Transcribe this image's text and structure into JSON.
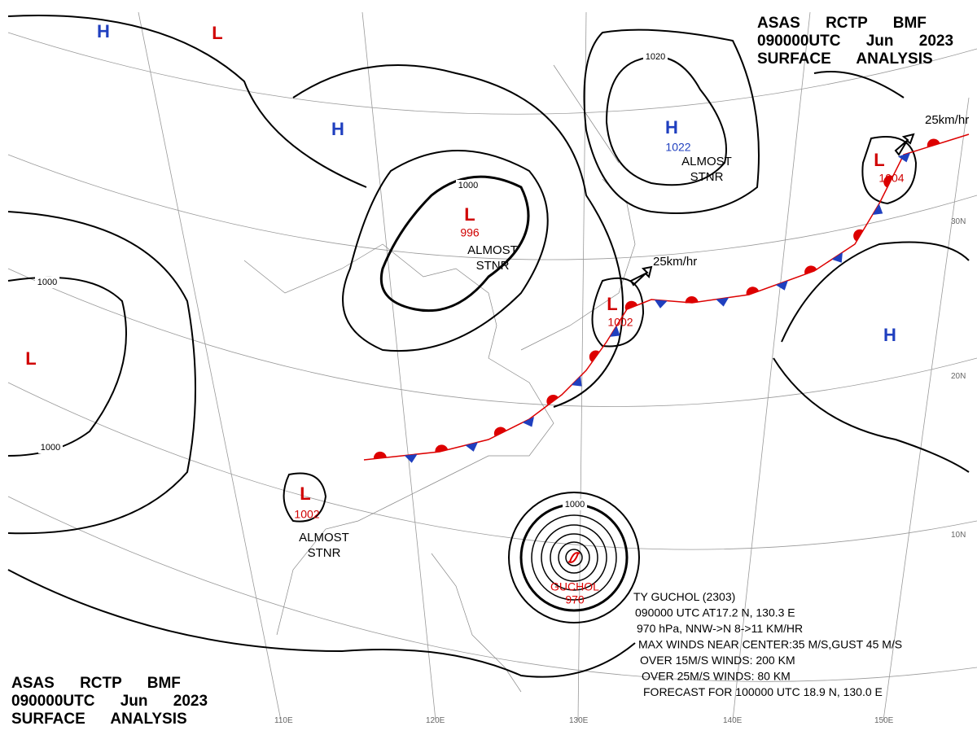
{
  "header_top": [
    "ASAS RCTP BMF",
    "090000UTC Jun 2023",
    "SURFACE ANALYSIS"
  ],
  "header_bottom": [
    "ASAS RCTP BMF",
    "090000UTC Jun 2023",
    "SURFACE ANALYSIS"
  ],
  "systems": [
    {
      "symbol": "H",
      "color": "#1f3fbf"
    },
    {
      "symbol": "L",
      "color": "#d00000"
    },
    {
      "symbol": "H",
      "color": "#1f3fbf"
    },
    {
      "symbol": "L",
      "color": "#d00000",
      "pressure": 996,
      "note": [
        "ALMOST",
        "STNR"
      ]
    },
    {
      "symbol": "H",
      "color": "#1f3fbf",
      "pressure": 1022,
      "note": [
        "ALMOST",
        "STNR"
      ]
    },
    {
      "symbol": "L",
      "color": "#d00000",
      "pressure": 1004
    },
    {
      "symbol": "L",
      "color": "#d00000",
      "pressure": 1002
    },
    {
      "symbol": "H",
      "color": "#1f3fbf"
    },
    {
      "symbol": "L",
      "color": "#d00000"
    },
    {
      "symbol": "L",
      "color": "#d00000",
      "pressure": 1002,
      "note": [
        "ALMOST",
        "STNR"
      ]
    }
  ],
  "isobar_labels": [
    1020,
    1000,
    1000,
    1000,
    1000
  ],
  "motion_labels": [
    "25km/hr",
    "25km/hr"
  ],
  "typhoon": {
    "name": "GUCHOL",
    "pressure": 970,
    "info": [
      "TY GUCHOL (2303)",
      "090000 UTC AT17.2 N, 130.3 E",
      "970 hPa, NNW->N 8->11 KM/HR",
      "MAX WINDS NEAR CENTER:35 M/S,GUST 45 M/S",
      "OVER 15M/S WINDS: 200 KM",
      "OVER 25M/S WINDS: 80 KM",
      "FORECAST FOR 100000 UTC 18.9 N, 130.0 E"
    ]
  },
  "lat_labels": [
    "30N",
    "20N",
    "10N"
  ],
  "lon_labels": [
    "110E",
    "120E",
    "130E",
    "140E",
    "150E"
  ]
}
